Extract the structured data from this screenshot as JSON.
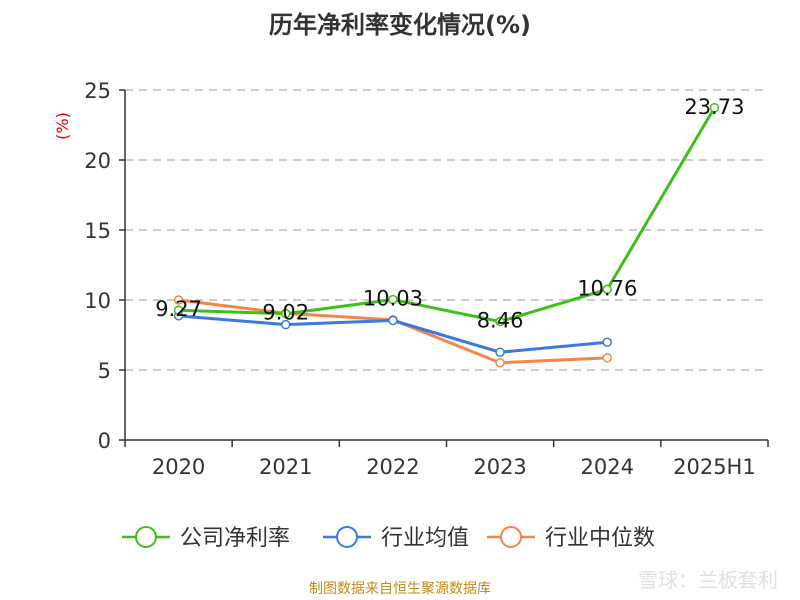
{
  "chart_data": {
    "type": "line",
    "title": "历年净利率变化情况(%)",
    "ylabel": "(%)",
    "xlabel": "",
    "categories": [
      "2020",
      "2021",
      "2022",
      "2023",
      "2024",
      "2025H1"
    ],
    "ylim": [
      0,
      25
    ],
    "yticks": [
      0,
      5,
      10,
      15,
      20,
      25
    ],
    "grid": true,
    "legend_position": "bottom",
    "series": [
      {
        "name": "公司净利率",
        "color": "#3fbf1a",
        "values": [
          9.27,
          9.02,
          10.03,
          8.46,
          10.76,
          23.73
        ],
        "labels": [
          "9.27",
          "9.02",
          "10.03",
          "8.46",
          "10.76",
          "23.73"
        ]
      },
      {
        "name": "行业均值",
        "color": "#3b78e0",
        "values": [
          8.87,
          8.24,
          8.54,
          6.27,
          6.98,
          null
        ]
      },
      {
        "name": "行业中位数",
        "color": "#f7834a",
        "values": [
          10.0,
          9.05,
          8.58,
          5.52,
          5.87,
          null
        ]
      }
    ]
  },
  "footer": "制图数据来自恒生聚源数据库",
  "watermark": "雪球：兰板套利"
}
